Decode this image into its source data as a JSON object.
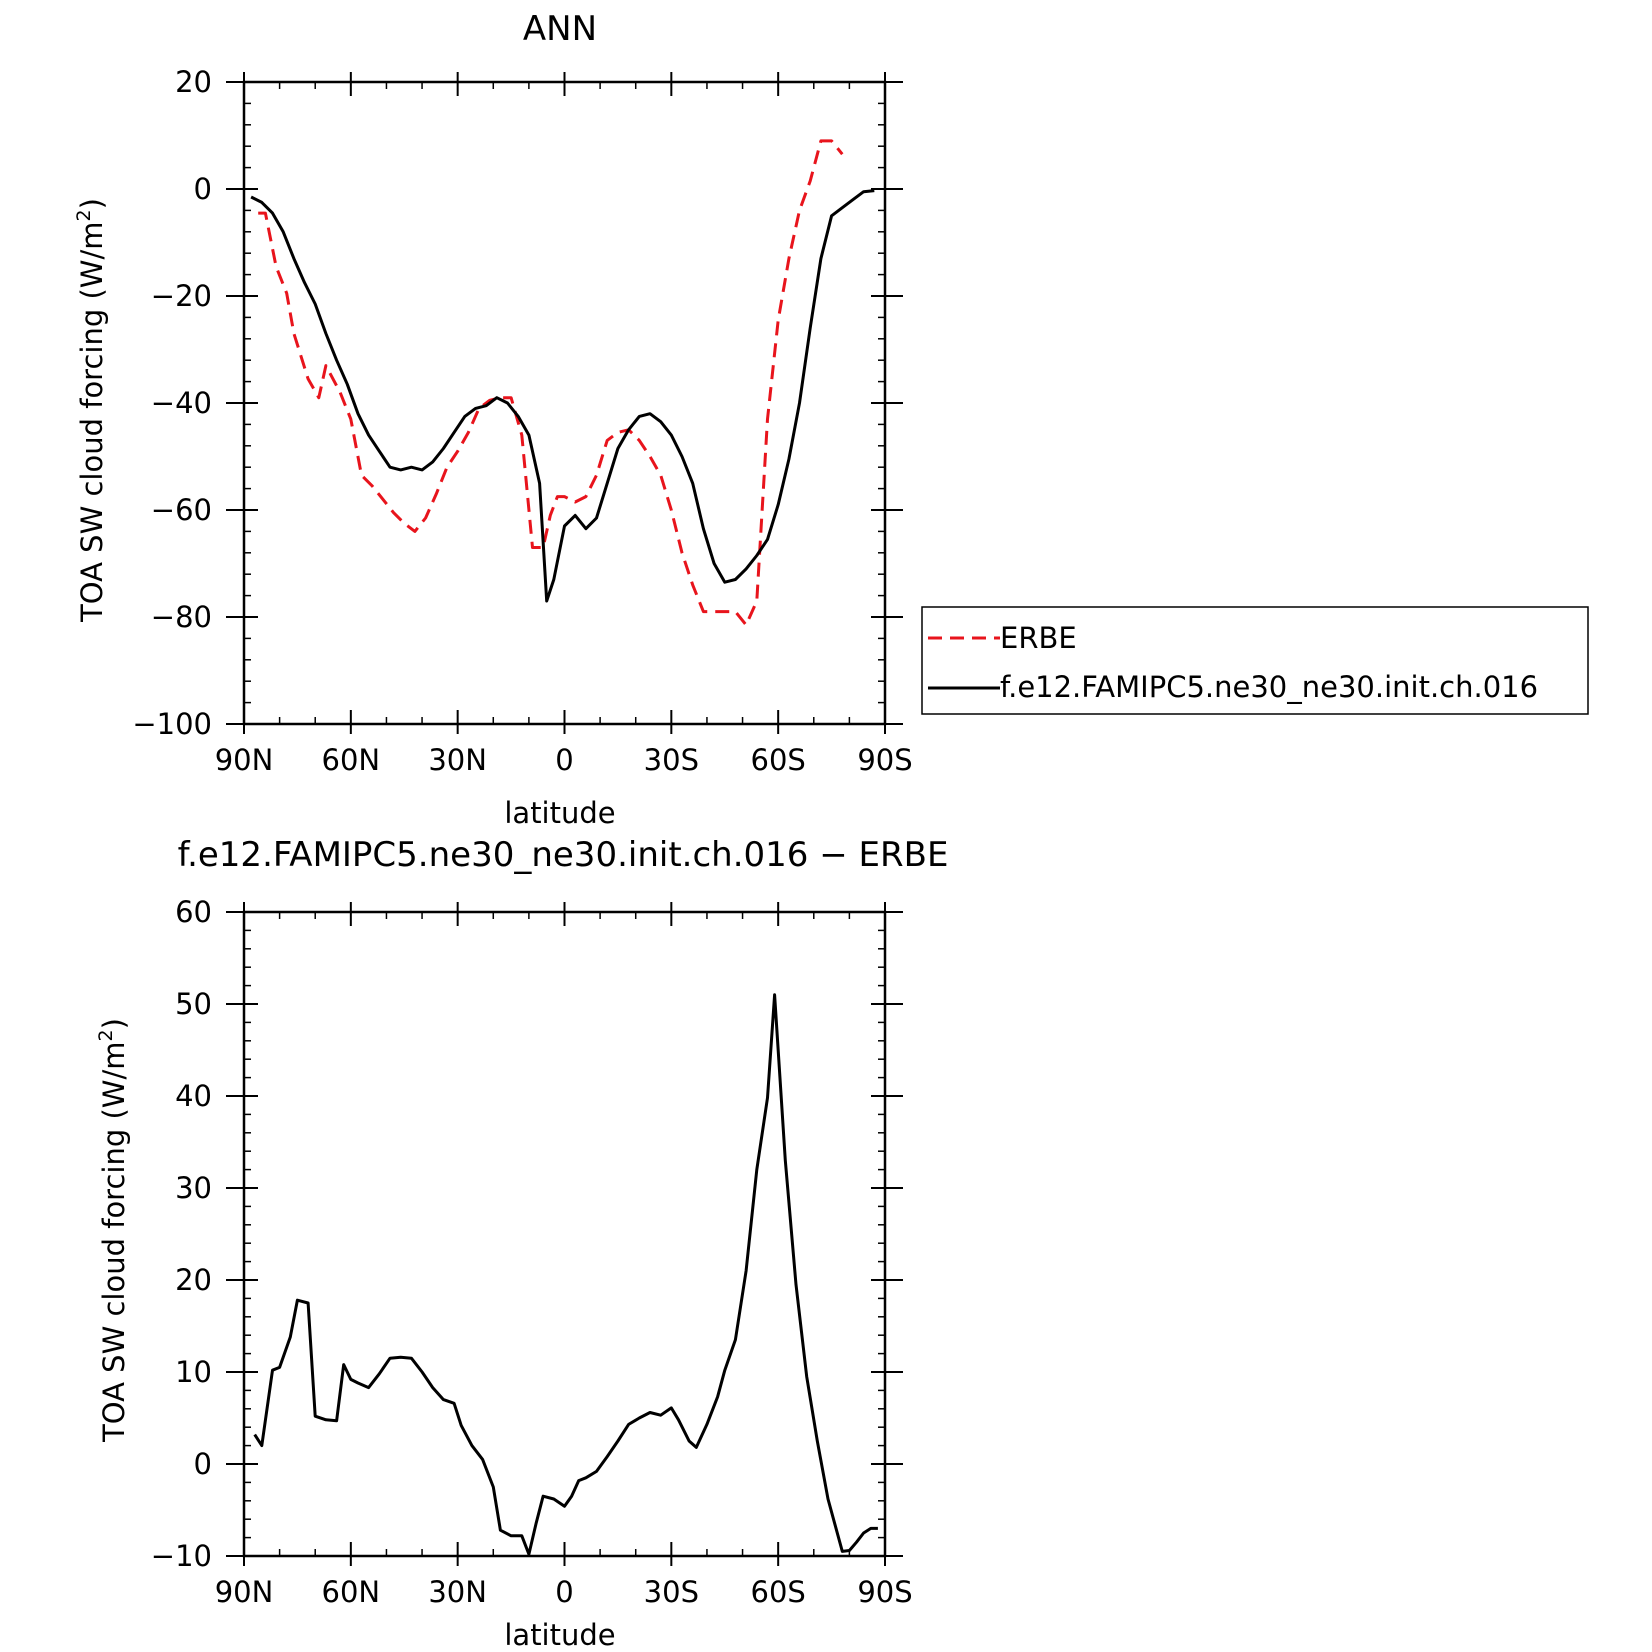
{
  "chart_data": [
    {
      "type": "line",
      "title": "ANN",
      "xlabel": "latitude",
      "ylabel": "TOA SW cloud forcing (W/m",
      "ylabel_sup": "2",
      "ylabel_end": ")",
      "x_ticks": [
        {
          "value": 90,
          "label": "90N"
        },
        {
          "value": 60,
          "label": "60N"
        },
        {
          "value": 30,
          "label": "30N"
        },
        {
          "value": 0,
          "label": "0"
        },
        {
          "value": -30,
          "label": "30S"
        },
        {
          "value": -60,
          "label": "60S"
        },
        {
          "value": -90,
          "label": "90S"
        }
      ],
      "xlim": [
        90,
        -90
      ],
      "ylim": [
        -100,
        20
      ],
      "y_ticks": [
        20,
        0,
        -20,
        -40,
        -60,
        -80,
        -100
      ],
      "y_tick_labels": [
        "20",
        "0",
        "−20",
        "−40",
        "−60",
        "−80",
        "−100"
      ],
      "legend": "right",
      "series": [
        {
          "name": "ERBE",
          "color": "#e8141c",
          "dash": "dashed",
          "x": [
            86,
            84,
            81,
            78,
            76,
            72,
            69,
            67,
            63,
            60,
            57,
            54,
            51,
            48,
            45,
            42,
            39,
            36,
            33,
            30,
            27,
            24,
            21,
            18,
            15,
            12,
            9,
            6,
            4,
            2,
            0,
            -3,
            -6,
            -9,
            -12,
            -15,
            -18,
            -21,
            -24,
            -27,
            -30,
            -33,
            -36,
            -39,
            -42,
            -45,
            -48,
            -51,
            -54,
            -57,
            -60,
            -63,
            -66,
            -69,
            -72,
            -75,
            -78,
            -81,
            -84,
            -86
          ],
          "y": [
            -4.5,
            -4.5,
            -14.5,
            -19.5,
            -27,
            -35.5,
            -39,
            -33,
            -38,
            -43,
            -53.5,
            -55.5,
            -58,
            -60.5,
            -62.5,
            -64,
            -61.5,
            -57,
            -52,
            -49,
            -45.5,
            -41,
            -39.5,
            -39,
            -39,
            -46,
            -67,
            -67,
            -61,
            -57.5,
            -57.5,
            -58.5,
            -57.5,
            -53.5,
            -47,
            -45.5,
            -45,
            -47,
            -50,
            -53.5,
            -60,
            -68,
            -74,
            -79,
            -79,
            -79,
            -79,
            -81.5,
            -77,
            -43,
            -24.5,
            -13,
            -4,
            1.5,
            9,
            9,
            6.5,
            6,
            6,
            6
          ],
          "visible_until_index": 57
        },
        {
          "name": "f.e12.FAMIPC5.ne30_ne30.init.ch.016",
          "color": "#000000",
          "dash": "solid",
          "x": [
            88,
            85,
            82,
            79,
            76,
            73,
            70,
            67,
            64,
            61,
            58,
            55,
            52,
            49,
            46,
            43,
            40,
            37,
            34,
            31,
            28,
            25,
            22,
            19,
            16,
            13,
            10,
            7,
            5,
            3,
            0,
            -3,
            -6,
            -9,
            -12,
            -15,
            -18,
            -21,
            -24,
            -27,
            -30,
            -33,
            -36,
            -39,
            -42,
            -45,
            -48,
            -51,
            -54,
            -57,
            -60,
            -63,
            -66,
            -69,
            -72,
            -75,
            -78,
            -81,
            -84,
            -87
          ],
          "y": [
            -1.5,
            -2.5,
            -4.5,
            -8,
            -13,
            -17.5,
            -21.5,
            -27,
            -32,
            -36.5,
            -42,
            -46,
            -49,
            -52,
            -52.5,
            -52,
            -52.5,
            -51,
            -48.5,
            -45.5,
            -42.5,
            -41,
            -40.5,
            -39,
            -40,
            -42.5,
            -46,
            -55,
            -77,
            -73,
            -63,
            -61,
            -63.5,
            -61.5,
            -55,
            -48.5,
            -45,
            -42.5,
            -42,
            -43.5,
            -46,
            -50,
            -55,
            -63.5,
            -70,
            -73.5,
            -73,
            -71,
            -68.5,
            -65.5,
            -59,
            -50.5,
            -40,
            -26,
            -13,
            -5,
            -3.5,
            -2,
            -0.5,
            -0.3
          ]
        }
      ]
    },
    {
      "type": "line",
      "title": "f.e12.FAMIPC5.ne30_ne30.init.ch.016 − ERBE",
      "xlabel": "latitude",
      "ylabel": "TOA SW cloud forcing (W/m",
      "ylabel_sup": "2",
      "ylabel_end": ")",
      "x_ticks": [
        {
          "value": 90,
          "label": "90N"
        },
        {
          "value": 60,
          "label": "60N"
        },
        {
          "value": 30,
          "label": "30N"
        },
        {
          "value": 0,
          "label": "0"
        },
        {
          "value": -30,
          "label": "30S"
        },
        {
          "value": -60,
          "label": "60S"
        },
        {
          "value": -90,
          "label": "90S"
        }
      ],
      "xlim": [
        90,
        -90
      ],
      "ylim": [
        -10,
        60
      ],
      "y_ticks": [
        60,
        50,
        40,
        30,
        20,
        10,
        0,
        -10
      ],
      "y_tick_labels": [
        "60",
        "50",
        "40",
        "30",
        "20",
        "10",
        "0",
        "−10"
      ],
      "series": [
        {
          "name": "",
          "color": "#000000",
          "dash": "solid",
          "x": [
            87,
            85,
            82,
            80,
            77,
            75,
            72,
            70,
            67,
            64,
            62,
            60,
            58,
            55,
            52,
            49,
            46,
            43,
            40,
            37,
            34,
            31,
            29,
            26,
            23,
            20,
            18,
            15,
            12,
            10,
            8,
            6,
            3,
            0,
            -2,
            -4,
            -6,
            -9,
            -12,
            -15,
            -18,
            -21,
            -24,
            -27,
            -30,
            -32,
            -35,
            -37,
            -40,
            -43,
            -45,
            -48,
            -51,
            -54,
            -57,
            -59,
            -62,
            -65,
            -68,
            -71,
            -74,
            -78,
            -80,
            -82,
            -84,
            -86,
            -88
          ],
          "y": [
            3.2,
            2,
            10.2,
            10.5,
            13.8,
            17.8,
            17.5,
            5.2,
            4.8,
            4.7,
            10.8,
            9.2,
            8.8,
            8.3,
            9.8,
            11.5,
            11.6,
            11.5,
            10,
            8.3,
            7,
            6.6,
            4.2,
            2,
            0.5,
            -2.5,
            -7.2,
            -7.8,
            -7.8,
            -9.8,
            -6.5,
            -3.5,
            -3.8,
            -4.6,
            -3.5,
            -1.8,
            -1.5,
            -0.8,
            0.8,
            2.5,
            4.3,
            5,
            5.6,
            5.3,
            6.1,
            4.8,
            2.5,
            1.8,
            4.3,
            7.3,
            10.2,
            13.5,
            21,
            32,
            39.8,
            51,
            33,
            19.5,
            9.5,
            2.5,
            -3.8,
            -9.5,
            -9.4,
            -8.5,
            -7.5,
            -7,
            -7
          ]
        }
      ]
    }
  ]
}
